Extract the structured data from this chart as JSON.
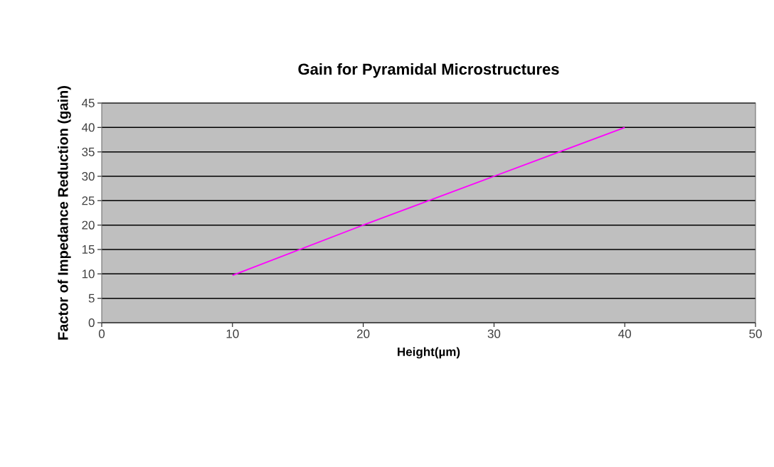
{
  "chart_data": {
    "type": "line",
    "title": "Gain for Pyramidal Microstructures",
    "xlabel": "Height(µm)",
    "ylabel": "Factor of Impedance Reduction (gain)",
    "x": [
      10,
      20,
      30,
      40
    ],
    "series": [
      {
        "color": "#ff00ff",
        "values": [
          9.7,
          20,
          30,
          40
        ]
      }
    ],
    "xlim": [
      0,
      50
    ],
    "xticks": [
      0,
      10,
      20,
      30,
      40,
      50
    ],
    "ylim": [
      0,
      45
    ],
    "yticks": [
      0,
      5,
      10,
      15,
      20,
      25,
      30,
      35,
      40,
      45
    ],
    "grid": "y",
    "marker": "none",
    "line_style": "solid"
  }
}
